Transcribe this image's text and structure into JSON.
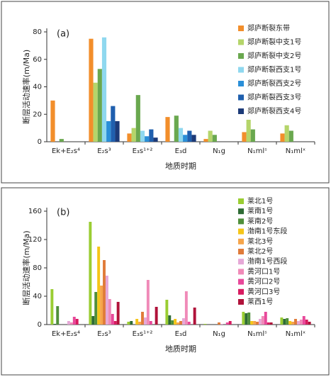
{
  "chart_data": [
    {
      "type": "bar",
      "panel_label": "(a)",
      "y_label": "断层活动速率(m/Ma)",
      "x_label": "地质时期",
      "categories": [
        "Ek+E₂s⁴",
        "E₂s³",
        "E₃s¹⁺²",
        "E₃d",
        "N₁g",
        "N₁mlˢ",
        "N₁mlˣ"
      ],
      "ylim": [
        0,
        80
      ],
      "yticks": [
        0,
        20,
        40,
        60,
        80
      ],
      "series": [
        {
          "name": "郯庐断裂东带",
          "color": "#f28e2b",
          "values": [
            30,
            75,
            6,
            18,
            2,
            7,
            6
          ]
        },
        {
          "name": "郯庐断裂中支1号",
          "color": "#b5d56a",
          "values": [
            null,
            43,
            10,
            null,
            8,
            16,
            12
          ]
        },
        {
          "name": "郯庐断裂中支2号",
          "color": "#6aa84f",
          "values": [
            2,
            53,
            34,
            19,
            5,
            9,
            8
          ]
        },
        {
          "name": "郯庐断裂西支1号",
          "color": "#8fd8ef",
          "values": [
            null,
            76,
            8,
            10,
            null,
            null,
            null
          ]
        },
        {
          "name": "郯庐断裂西支2号",
          "color": "#2a8fd8",
          "values": [
            null,
            15,
            4,
            5,
            null,
            null,
            null
          ]
        },
        {
          "name": "郯庐断裂西支3号",
          "color": "#1f5fae",
          "values": [
            null,
            26,
            9,
            8,
            null,
            null,
            null
          ]
        },
        {
          "name": "郯庐断裂西支4号",
          "color": "#1c3a78",
          "values": [
            null,
            15,
            3,
            5,
            null,
            null,
            null
          ]
        }
      ]
    },
    {
      "type": "bar",
      "panel_label": "(b)",
      "y_label": "断层活动速率(m/Ma)",
      "x_label": "地质时期",
      "categories": [
        "Ek+E₂s⁴",
        "E₂s³",
        "E₃s¹⁺²",
        "E₃d",
        "N₁g",
        "N₁mlˢ",
        "N₁mlˣ"
      ],
      "ylim": [
        0,
        160
      ],
      "yticks": [
        0,
        40,
        80,
        120,
        160
      ],
      "series": [
        {
          "name": "莱北1号",
          "color": "#9acd32",
          "values": [
            50,
            145,
            4,
            35,
            1,
            18,
            10
          ]
        },
        {
          "name": "莱南1号",
          "color": "#2e6b34",
          "values": [
            1,
            12,
            5,
            13,
            null,
            16,
            8
          ]
        },
        {
          "name": "莱南2号",
          "color": "#4f8f3a",
          "values": [
            26,
            46,
            null,
            6,
            null,
            17,
            9
          ]
        },
        {
          "name": "渤南1号东段",
          "color": "#f5c518",
          "values": [
            null,
            110,
            8,
            8,
            null,
            5,
            5
          ]
        },
        {
          "name": "莱北3号",
          "color": "#f6a54a",
          "values": [
            null,
            55,
            4,
            3,
            null,
            5,
            4
          ]
        },
        {
          "name": "莱北2号",
          "color": "#e07b39",
          "values": [
            null,
            91,
            18,
            5,
            3,
            4,
            8
          ]
        },
        {
          "name": "渤南1号西段",
          "color": "#e6a8d7",
          "values": [
            5,
            69,
            10,
            9,
            1,
            8,
            5
          ]
        },
        {
          "name": "黄河口1号",
          "color": "#f08ab8",
          "values": [
            3,
            36,
            63,
            47,
            null,
            12,
            7
          ]
        },
        {
          "name": "黄河口2号",
          "color": "#e8489a",
          "values": [
            11,
            15,
            5,
            4,
            3,
            18,
            12
          ]
        },
        {
          "name": "黄河口3号",
          "color": "#d81b60",
          "values": [
            8,
            5,
            null,
            null,
            5,
            3,
            7
          ]
        },
        {
          "name": "莱西1号",
          "color": "#b0123a",
          "values": [
            null,
            32,
            25,
            24,
            null,
            3,
            4
          ]
        }
      ]
    }
  ]
}
